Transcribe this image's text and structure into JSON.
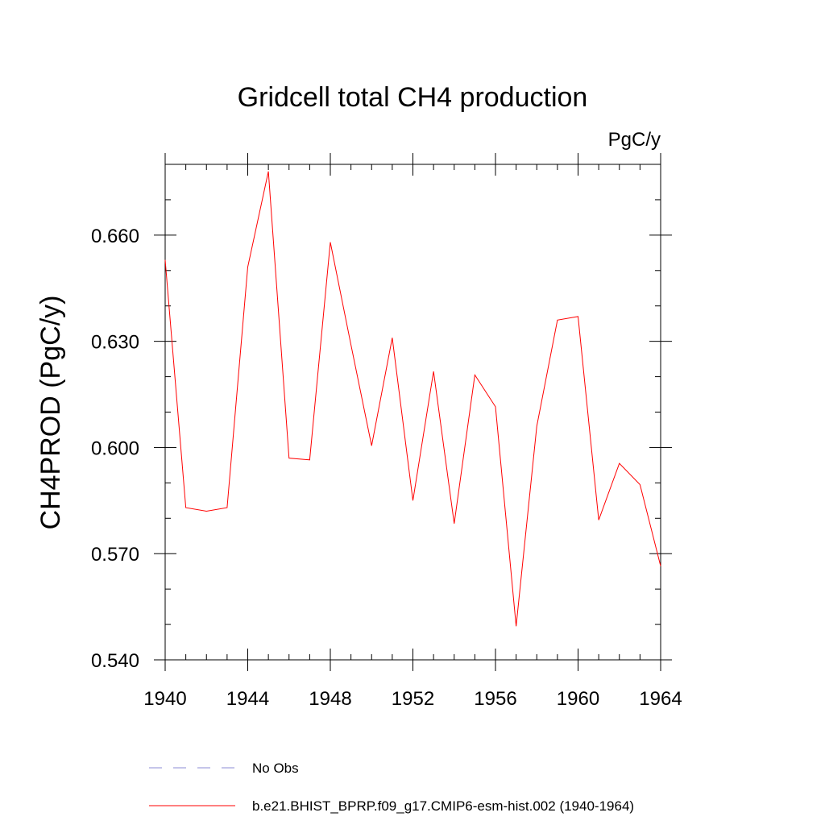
{
  "chart_data": {
    "type": "line",
    "title": "Gridcell total CH4 production",
    "units_label": "PgC/y",
    "ylabel": "CH4PROD  (PgC/y)",
    "xlabel": "",
    "xlim": [
      1940,
      1964
    ],
    "ylim": [
      0.54,
      0.68
    ],
    "x_ticks": [
      1940,
      1944,
      1948,
      1952,
      1956,
      1960,
      1964
    ],
    "x_tick_labels": [
      "1940",
      "1944",
      "1948",
      "1952",
      "1956",
      "1960",
      "1964"
    ],
    "y_ticks": [
      0.54,
      0.57,
      0.6,
      0.63,
      0.66
    ],
    "y_tick_labels": [
      "0.540",
      "0.570",
      "0.600",
      "0.630",
      "0.660"
    ],
    "x_minor_step": 1,
    "y_minor_step": 0.01,
    "grid": false,
    "series": [
      {
        "name": "b.e21.BHIST_BPRP.f09_g17.CMIP6-esm-hist.002 (1940-1964)",
        "color": "#ff0000",
        "x": [
          1940,
          1941,
          1942,
          1943,
          1944,
          1945,
          1946,
          1947,
          1948,
          1949,
          1950,
          1951,
          1952,
          1953,
          1954,
          1955,
          1956,
          1957,
          1958,
          1959,
          1960,
          1961,
          1962,
          1963,
          1964
        ],
        "values": [
          0.653,
          0.583,
          0.582,
          0.583,
          0.651,
          0.678,
          0.597,
          0.5965,
          0.658,
          0.629,
          0.6005,
          0.631,
          0.585,
          0.6215,
          0.5785,
          0.6205,
          0.6115,
          0.5495,
          0.606,
          0.636,
          0.637,
          0.5795,
          0.5955,
          0.5895,
          0.5665
        ]
      }
    ],
    "legend": [
      {
        "label": "No Obs",
        "style": "dashed",
        "color": "#8b8bd6"
      },
      {
        "label": "b.e21.BHIST_BPRP.f09_g17.CMIP6-esm-hist.002 (1940-1964)",
        "style": "solid",
        "color": "#ff0000"
      }
    ],
    "legend_position": "bottom"
  }
}
